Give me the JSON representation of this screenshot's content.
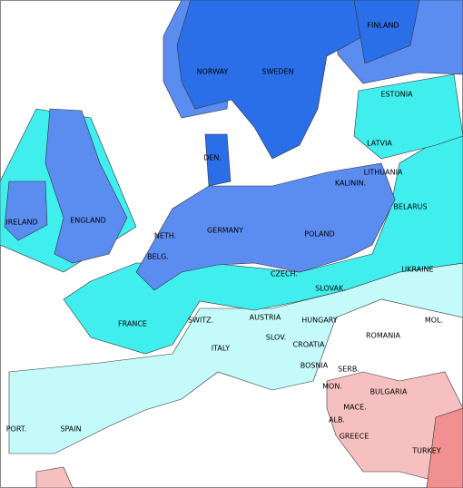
{
  "labels": [
    "FINLAND",
    "NORWAY",
    "SWEDEN",
    "ESTONIA",
    "LATVIA",
    "DEN.",
    "LITHUANIA",
    "KALININ.",
    "IRELAND",
    "ENGLAND",
    "BELARUS",
    "GERMANY",
    "NETH.",
    "POLAND",
    "BELG.",
    "UKRAINE",
    "CZECH.",
    "SLOVAK.",
    "FRANCE",
    "SWITZ.",
    "AUSTRIA",
    "HUNGARY",
    "MOL.",
    "SLOV.",
    "CROATIA",
    "ROMANIA",
    "ITALY",
    "BOSNIA",
    "SERB.",
    "MON.",
    "BULGARIA",
    "MACE.",
    "ALB.",
    "PORT.",
    "SPAIN",
    "GREECE",
    "TURKEY"
  ]
}
